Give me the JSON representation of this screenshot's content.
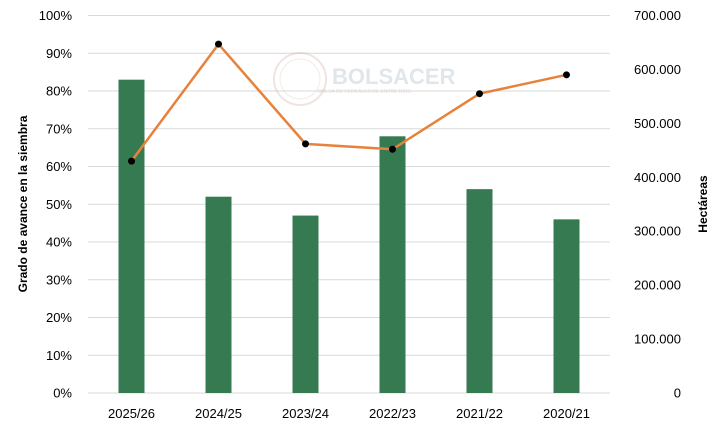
{
  "chart_data": {
    "type": "bar+line",
    "title": "",
    "categories": [
      "2025/26",
      "2024/25",
      "2023/24",
      "2022/23",
      "2021/22",
      "2020/21"
    ],
    "series": [
      {
        "name": "Grado de avance en la siembra",
        "type": "bar",
        "axis": "left",
        "unit": "%",
        "color": "#357a50",
        "values": [
          83,
          52,
          47,
          68,
          54,
          46
        ]
      },
      {
        "name": "Hectáreas",
        "type": "line",
        "axis": "right",
        "color": "#e8823a",
        "marker_color": "#000000",
        "values": [
          430000,
          647000,
          462000,
          452000,
          555000,
          590000
        ]
      }
    ],
    "ylabel": "Grado de avance en la siembra",
    "y2label": "Hectáreas",
    "ylim": [
      0,
      100
    ],
    "y2lim": [
      0,
      700000
    ],
    "yticks": [
      "0%",
      "10%",
      "20%",
      "30%",
      "40%",
      "50%",
      "60%",
      "70%",
      "80%",
      "90%",
      "100%"
    ],
    "y2ticks": [
      "0",
      "100.000",
      "200.000",
      "300.000",
      "400.000",
      "500.000",
      "600.000",
      "700.000"
    ],
    "grid": true,
    "watermark": {
      "title": "BOLSACER",
      "subtitle": "BOLSA DE CEREALES DE ENTRE RÍOS"
    }
  }
}
